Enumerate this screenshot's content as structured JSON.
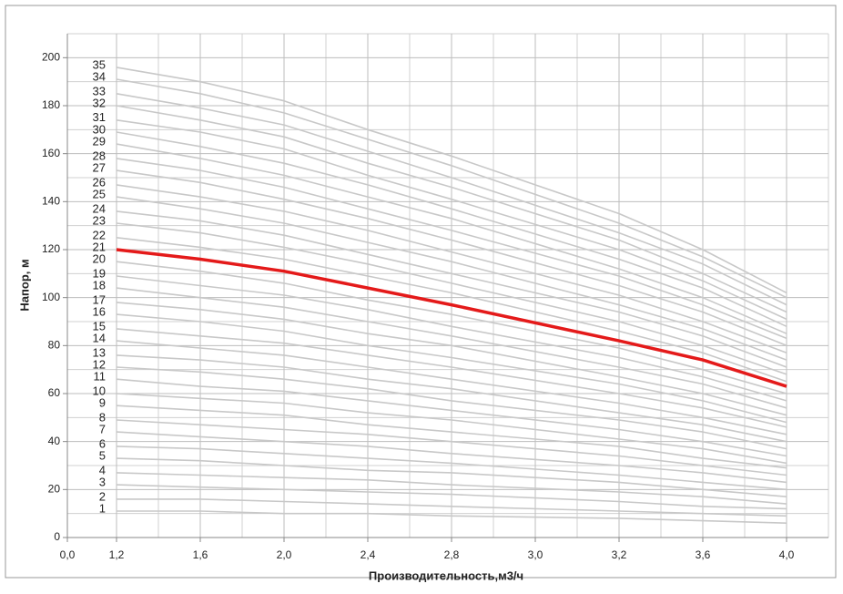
{
  "chart_data": {
    "type": "line",
    "xlabel": "Производительность,м3/ч",
    "ylabel": "Напор, м",
    "x": [
      1.2,
      1.6,
      2.0,
      2.4,
      2.8,
      3.2,
      3.6,
      4.0
    ],
    "xlim": [
      0,
      4.0
    ],
    "xticks": [
      {
        "value": 0,
        "label": "0,0"
      },
      {
        "value": 1.2,
        "label": "1,2"
      },
      {
        "value": 1.6,
        "label": "1,6"
      },
      {
        "value": 2.0,
        "label": "2,0"
      },
      {
        "value": 2.4,
        "label": "2,4"
      },
      {
        "value": 2.8,
        "label": "2,8"
      },
      {
        "value": 3.0,
        "label": "3,0"
      },
      {
        "value": 3.2,
        "label": "3,2"
      },
      {
        "value": 3.6,
        "label": "3,6"
      },
      {
        "value": 4.0,
        "label": "4,0"
      }
    ],
    "ylim": [
      0,
      210
    ],
    "yticks": [
      0,
      20,
      40,
      60,
      80,
      100,
      120,
      140,
      160,
      180,
      200
    ],
    "grid": true,
    "series": [
      {
        "name": "1",
        "color": "#c8c8c8",
        "values": [
          11,
          11,
          10,
          10,
          9,
          8,
          7,
          6
        ]
      },
      {
        "name": "2",
        "color": "#c8c8c8",
        "values": [
          16,
          16,
          15,
          14,
          13,
          11,
          10,
          9
        ]
      },
      {
        "name": "3",
        "color": "#c8c8c8",
        "values": [
          22,
          21,
          20,
          19,
          18,
          15,
          13,
          12
        ]
      },
      {
        "name": "4",
        "color": "#c8c8c8",
        "values": [
          27,
          26,
          25,
          24,
          22,
          19,
          17,
          14
        ]
      },
      {
        "name": "5",
        "color": "#c8c8c8",
        "values": [
          33,
          32,
          30,
          28,
          27,
          23,
          20,
          17
        ]
      },
      {
        "name": "6",
        "color": "#c8c8c8",
        "values": [
          38,
          37,
          35,
          33,
          31,
          26,
          23,
          20
        ]
      },
      {
        "name": "7",
        "color": "#c8c8c8",
        "values": [
          44,
          42,
          40,
          38,
          35,
          30,
          27,
          23
        ]
      },
      {
        "name": "8",
        "color": "#c8c8c8",
        "values": [
          49,
          47,
          45,
          43,
          40,
          34,
          30,
          26
        ]
      },
      {
        "name": "9",
        "color": "#c8c8c8",
        "values": [
          55,
          53,
          51,
          47,
          44,
          38,
          33,
          29
        ]
      },
      {
        "name": "10",
        "color": "#c8c8c8",
        "values": [
          60,
          58,
          56,
          52,
          49,
          41,
          37,
          31
        ]
      },
      {
        "name": "11",
        "color": "#c8c8c8",
        "values": [
          66,
          63,
          61,
          57,
          53,
          45,
          40,
          34
        ]
      },
      {
        "name": "12",
        "color": "#c8c8c8",
        "values": [
          71,
          69,
          66,
          62,
          57,
          49,
          44,
          37
        ]
      },
      {
        "name": "13",
        "color": "#c8c8c8",
        "values": [
          76,
          74,
          71,
          66,
          62,
          52,
          47,
          40
        ]
      },
      {
        "name": "14",
        "color": "#c8c8c8",
        "values": [
          82,
          79,
          76,
          71,
          66,
          56,
          50,
          43
        ]
      },
      {
        "name": "15",
        "color": "#c8c8c8",
        "values": [
          87,
          84,
          81,
          76,
          71,
          60,
          54,
          46
        ]
      },
      {
        "name": "16",
        "color": "#c8c8c8",
        "values": [
          93,
          90,
          86,
          80,
          75,
          64,
          57,
          48
        ]
      },
      {
        "name": "17",
        "color": "#c8c8c8",
        "values": [
          98,
          95,
          91,
          85,
          80,
          67,
          60,
          51
        ]
      },
      {
        "name": "18",
        "color": "#c8c8c8",
        "values": [
          104,
          100,
          96,
          90,
          84,
          71,
          64,
          54
        ]
      },
      {
        "name": "19",
        "color": "#c8c8c8",
        "values": [
          109,
          105,
          101,
          95,
          88,
          75,
          67,
          57
        ]
      },
      {
        "name": "20",
        "color": "#c8c8c8",
        "values": [
          115,
          111,
          106,
          99,
          93,
          79,
          70,
          60
        ]
      },
      {
        "name": "21",
        "color": "#e41a1a",
        "values": [
          120,
          116,
          111,
          104,
          97,
          82,
          74,
          63
        ]
      },
      {
        "name": "22",
        "color": "#c8c8c8",
        "values": [
          125,
          121,
          116,
          109,
          102,
          86,
          77,
          65
        ]
      },
      {
        "name": "23",
        "color": "#c8c8c8",
        "values": [
          131,
          127,
          121,
          114,
          106,
          90,
          80,
          68
        ]
      },
      {
        "name": "24",
        "color": "#c8c8c8",
        "values": [
          136,
          132,
          126,
          118,
          110,
          94,
          84,
          71
        ]
      },
      {
        "name": "25",
        "color": "#c8c8c8",
        "values": [
          142,
          137,
          131,
          123,
          115,
          97,
          87,
          74
        ]
      },
      {
        "name": "26",
        "color": "#c8c8c8",
        "values": [
          147,
          142,
          136,
          128,
          119,
          101,
          90,
          77
        ]
      },
      {
        "name": "27",
        "color": "#c8c8c8",
        "values": [
          153,
          148,
          141,
          133,
          124,
          105,
          94,
          80
        ]
      },
      {
        "name": "28",
        "color": "#c8c8c8",
        "values": [
          158,
          153,
          146,
          137,
          128,
          109,
          97,
          83
        ]
      },
      {
        "name": "29",
        "color": "#c8c8c8",
        "values": [
          164,
          158,
          151,
          142,
          133,
          112,
          100,
          85
        ]
      },
      {
        "name": "30",
        "color": "#c8c8c8",
        "values": [
          169,
          163,
          156,
          147,
          137,
          116,
          104,
          88
        ]
      },
      {
        "name": "31",
        "color": "#c8c8c8",
        "values": [
          174,
          169,
          162,
          151,
          141,
          120,
          107,
          91
        ]
      },
      {
        "name": "32",
        "color": "#c8c8c8",
        "values": [
          180,
          174,
          167,
          156,
          146,
          124,
          110,
          94
        ]
      },
      {
        "name": "33",
        "color": "#c8c8c8",
        "values": [
          185,
          179,
          172,
          161,
          150,
          127,
          114,
          97
        ]
      },
      {
        "name": "34",
        "color": "#c8c8c8",
        "values": [
          191,
          185,
          177,
          166,
          155,
          131,
          117,
          100
        ]
      },
      {
        "name": "35",
        "color": "#c8c8c8",
        "values": [
          196,
          190,
          182,
          170,
          159,
          135,
          120,
          102
        ]
      }
    ]
  }
}
